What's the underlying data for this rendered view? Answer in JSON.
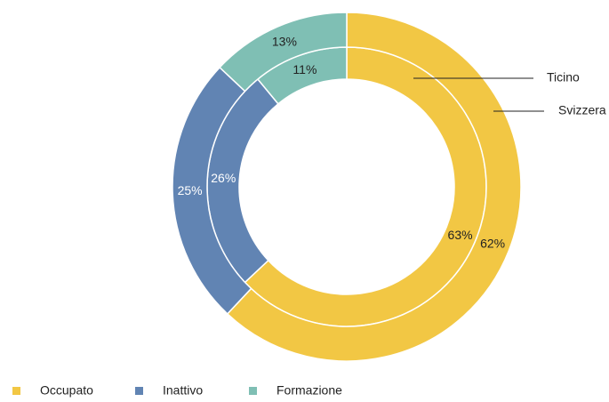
{
  "chart_data": {
    "type": "donut",
    "categories": [
      "Occupato",
      "Inattivo",
      "Formazione"
    ],
    "colors": [
      "#f2c744",
      "#6184b3",
      "#7fbfb4"
    ],
    "series": [
      {
        "name": "Ticino",
        "values": [
          63,
          26,
          11
        ],
        "value_labels": [
          "63%",
          "26%",
          "11%"
        ]
      },
      {
        "name": "Svizzera",
        "values": [
          62,
          25,
          13
        ],
        "value_labels": [
          "62%",
          "25%",
          "13%"
        ]
      }
    ],
    "legend": "bottom-left"
  }
}
